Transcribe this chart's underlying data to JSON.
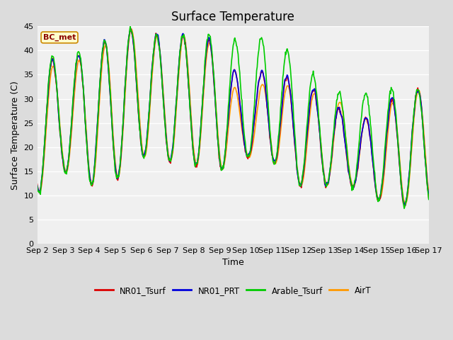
{
  "title": "Surface Temperature",
  "xlabel": "Time",
  "ylabel": "Surface Temperature (C)",
  "annotation": "BC_met",
  "ylim": [
    0,
    45
  ],
  "yticks": [
    0,
    5,
    10,
    15,
    20,
    25,
    30,
    35,
    40,
    45
  ],
  "colors": {
    "NR01_Tsurf": "#dd0000",
    "NR01_PRT": "#0000dd",
    "Arable_Tsurf": "#00cc00",
    "AirT": "#ff9900"
  },
  "legend_labels": [
    "NR01_Tsurf",
    "NR01_PRT",
    "Arable_Tsurf",
    "AirT"
  ],
  "x_tick_labels": [
    "Sep 2",
    "Sep 3",
    "Sep 4",
    "Sep 5",
    "Sep 6",
    "Sep 7",
    "Sep 8",
    "Sep 9",
    "Sep 10",
    "Sep 11",
    "Sep 12",
    "Sep 13",
    "Sep 14",
    "Sep 15",
    "Sep 16",
    "Sep 17"
  ],
  "background_color": "#dcdcdc",
  "plot_bg_color": "#f0f0f0",
  "title_fontsize": 12,
  "axis_label_fontsize": 9,
  "tick_fontsize": 8,
  "line_width": 1.2,
  "peak_temps": [
    38,
    38,
    40,
    43,
    45,
    42,
    44,
    41,
    32,
    38,
    32,
    32,
    25,
    27,
    32
  ],
  "trough_temps": [
    10,
    15,
    12,
    13,
    18,
    17,
    16,
    15,
    18,
    17,
    12,
    12,
    12,
    9,
    8
  ],
  "arable_peak_offset": [
    0.5,
    1,
    0.3,
    0.2,
    0.5,
    -0.5,
    0.5,
    1.5,
    10,
    5,
    6,
    1,
    5,
    5,
    0
  ],
  "air_peak_offset": [
    -1,
    -1,
    -1,
    0,
    1,
    -1,
    1,
    -1,
    -5,
    -1,
    -2,
    0,
    3,
    -2,
    0
  ],
  "n_points_per_day": 48
}
